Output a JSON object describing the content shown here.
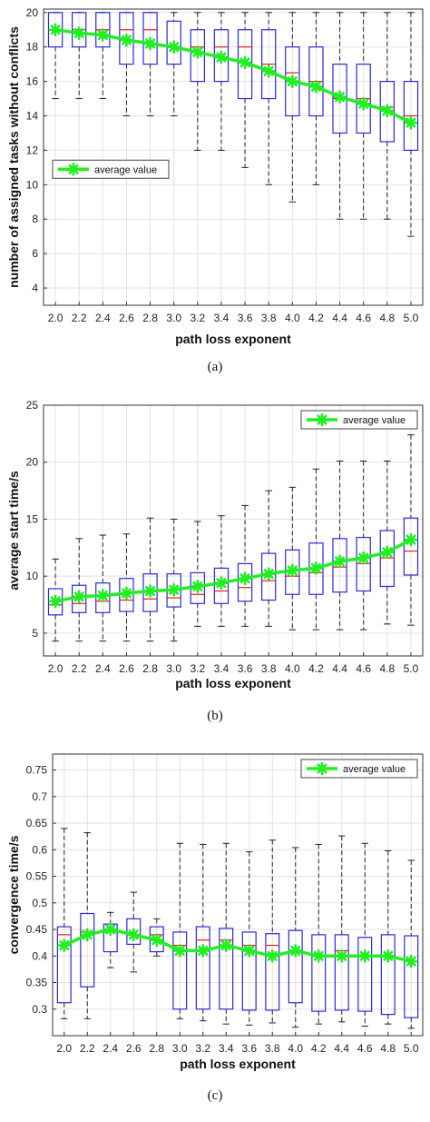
{
  "chart_data": [
    {
      "type": "box",
      "panel_label": "(a)",
      "xlabel": "path loss exponent",
      "ylabel": "number of assigned tasks without conflicts",
      "categories": [
        "2.0",
        "2.2",
        "2.4",
        "2.6",
        "2.8",
        "3.0",
        "3.2",
        "3.4",
        "3.6",
        "3.8",
        "4.0",
        "4.2",
        "4.4",
        "4.6",
        "4.8",
        "5.0"
      ],
      "ylim": [
        3,
        20.2
      ],
      "yticks": [
        4,
        6,
        8,
        10,
        12,
        14,
        16,
        18,
        20
      ],
      "grid": true,
      "legend": {
        "label": "average value",
        "placement": "middle-left"
      },
      "average_series": {
        "name": "average value",
        "color": "#22ee22",
        "values": [
          19.0,
          18.8,
          18.7,
          18.4,
          18.2,
          18.0,
          17.7,
          17.4,
          17.1,
          16.6,
          16.0,
          15.7,
          15.1,
          14.7,
          14.3,
          13.6
        ]
      },
      "boxes": [
        {
          "min": 15,
          "q1": 18.0,
          "median": 19.0,
          "q3": 20,
          "max": 20
        },
        {
          "min": 15,
          "q1": 18.0,
          "median": 19.0,
          "q3": 20,
          "max": 20
        },
        {
          "min": 15,
          "q1": 18.0,
          "median": 19.0,
          "q3": 20,
          "max": 20
        },
        {
          "min": 14,
          "q1": 17.0,
          "median": 19.0,
          "q3": 20,
          "max": 20
        },
        {
          "min": 14,
          "q1": 17.0,
          "median": 19.0,
          "q3": 20,
          "max": 20
        },
        {
          "min": 14,
          "q1": 17.0,
          "median": 18.0,
          "q3": 19.5,
          "max": 20
        },
        {
          "min": 12,
          "q1": 16.0,
          "median": 18.0,
          "q3": 19.0,
          "max": 20
        },
        {
          "min": 12,
          "q1": 16.0,
          "median": 18.0,
          "q3": 19.0,
          "max": 20
        },
        {
          "min": 11,
          "q1": 15.0,
          "median": 18.0,
          "q3": 19.0,
          "max": 20
        },
        {
          "min": 10,
          "q1": 15.0,
          "median": 17.0,
          "q3": 19.0,
          "max": 20
        },
        {
          "min": 9,
          "q1": 14.0,
          "median": 16.5,
          "q3": 18.0,
          "max": 20
        },
        {
          "min": 10,
          "q1": 14.0,
          "median": 16.0,
          "q3": 18.0,
          "max": 20
        },
        {
          "min": 8,
          "q1": 13.0,
          "median": 15.0,
          "q3": 17.0,
          "max": 20
        },
        {
          "min": 8,
          "q1": 13.0,
          "median": 15.0,
          "q3": 17.0,
          "max": 20
        },
        {
          "min": 8,
          "q1": 12.5,
          "median": 14.5,
          "q3": 16.0,
          "max": 20
        },
        {
          "min": 7,
          "q1": 12.0,
          "median": 14.0,
          "q3": 16.0,
          "max": 20
        }
      ]
    },
    {
      "type": "box",
      "panel_label": "(b)",
      "xlabel": "path loss exponent",
      "ylabel": "average start time/s",
      "categories": [
        "2.0",
        "2.2",
        "2.4",
        "2.6",
        "2.8",
        "3.0",
        "3.2",
        "3.4",
        "3.6",
        "3.8",
        "4.0",
        "4.2",
        "4.4",
        "4.6",
        "4.8",
        "5.0"
      ],
      "ylim": [
        3,
        25
      ],
      "yticks": [
        5,
        10,
        15,
        20,
        25
      ],
      "grid": true,
      "legend": {
        "label": "average value",
        "placement": "top-right"
      },
      "average_series": {
        "name": "average value",
        "color": "#22ee22",
        "values": [
          7.8,
          8.2,
          8.3,
          8.5,
          8.7,
          8.8,
          9.1,
          9.4,
          9.8,
          10.2,
          10.5,
          10.7,
          11.3,
          11.6,
          12.1,
          13.2
        ]
      },
      "boxes": [
        {
          "min": 4.3,
          "q1": 6.6,
          "median": 7.5,
          "q3": 8.9,
          "max": 11.5
        },
        {
          "min": 4.3,
          "q1": 6.8,
          "median": 7.6,
          "q3": 9.2,
          "max": 13.3
        },
        {
          "min": 4.3,
          "q1": 6.8,
          "median": 7.8,
          "q3": 9.4,
          "max": 13.6
        },
        {
          "min": 4.3,
          "q1": 6.9,
          "median": 7.9,
          "q3": 9.8,
          "max": 13.7
        },
        {
          "min": 4.3,
          "q1": 6.9,
          "median": 8.0,
          "q3": 10.2,
          "max": 15.1
        },
        {
          "min": 4.3,
          "q1": 7.3,
          "median": 8.1,
          "q3": 10.2,
          "max": 15.0
        },
        {
          "min": 5.6,
          "q1": 7.6,
          "median": 8.4,
          "q3": 10.3,
          "max": 14.8
        },
        {
          "min": 5.6,
          "q1": 7.6,
          "median": 8.7,
          "q3": 10.7,
          "max": 15.3
        },
        {
          "min": 5.6,
          "q1": 7.8,
          "median": 9.0,
          "q3": 11.1,
          "max": 16.2
        },
        {
          "min": 5.6,
          "q1": 7.9,
          "median": 9.6,
          "q3": 12.0,
          "max": 17.5
        },
        {
          "min": 5.3,
          "q1": 8.4,
          "median": 10.0,
          "q3": 12.3,
          "max": 17.8
        },
        {
          "min": 5.3,
          "q1": 8.4,
          "median": 10.3,
          "q3": 12.9,
          "max": 19.4
        },
        {
          "min": 5.3,
          "q1": 8.6,
          "median": 10.8,
          "q3": 13.3,
          "max": 20.1
        },
        {
          "min": 5.3,
          "q1": 8.7,
          "median": 11.1,
          "q3": 13.4,
          "max": 20.1
        },
        {
          "min": 5.8,
          "q1": 9.1,
          "median": 11.6,
          "q3": 14.0,
          "max": 20.1
        },
        {
          "min": 5.7,
          "q1": 10.1,
          "median": 12.2,
          "q3": 15.1,
          "max": 22.4
        }
      ]
    },
    {
      "type": "box",
      "panel_label": "(c)",
      "xlabel": "path loss exponent",
      "ylabel": "convergence time/s",
      "categories": [
        "2.0",
        "2.2",
        "2.4",
        "2.6",
        "2.8",
        "3.0",
        "3.2",
        "3.4",
        "3.6",
        "3.8",
        "4.0",
        "4.2",
        "4.4",
        "4.6",
        "4.8",
        "5.0"
      ],
      "ylim": [
        0.25,
        0.78
      ],
      "yticks": [
        0.3,
        0.35,
        0.4,
        0.45,
        0.5,
        0.55,
        0.6,
        0.65,
        0.7,
        0.75
      ],
      "ytick_labels": [
        "0.3",
        "0.35",
        "0.4",
        "0.45",
        "0.5",
        "0.55",
        "0.6",
        "0.65",
        "0.7",
        "0.75"
      ],
      "grid": true,
      "legend": {
        "label": "average value",
        "placement": "top-right"
      },
      "average_series": {
        "name": "average value",
        "color": "#22ee22",
        "values": [
          0.42,
          0.44,
          0.45,
          0.44,
          0.43,
          0.41,
          0.41,
          0.42,
          0.41,
          0.4,
          0.41,
          0.4,
          0.4,
          0.4,
          0.4,
          0.39
        ]
      },
      "boxes": [
        {
          "min": 0.282,
          "q1": 0.312,
          "median": 0.44,
          "q3": 0.455,
          "max": 0.64
        },
        {
          "min": 0.282,
          "q1": 0.342,
          "median": 0.445,
          "q3": 0.48,
          "max": 0.632
        },
        {
          "min": 0.378,
          "q1": 0.408,
          "median": 0.445,
          "q3": 0.46,
          "max": 0.482
        },
        {
          "min": 0.37,
          "q1": 0.422,
          "median": 0.44,
          "q3": 0.47,
          "max": 0.52
        },
        {
          "min": 0.4,
          "q1": 0.408,
          "median": 0.44,
          "q3": 0.455,
          "max": 0.47
        },
        {
          "min": 0.282,
          "q1": 0.3,
          "median": 0.42,
          "q3": 0.445,
          "max": 0.612
        },
        {
          "min": 0.278,
          "q1": 0.3,
          "median": 0.43,
          "q3": 0.455,
          "max": 0.61
        },
        {
          "min": 0.272,
          "q1": 0.3,
          "median": 0.43,
          "q3": 0.452,
          "max": 0.612
        },
        {
          "min": 0.27,
          "q1": 0.298,
          "median": 0.42,
          "q3": 0.445,
          "max": 0.596
        },
        {
          "min": 0.274,
          "q1": 0.298,
          "median": 0.42,
          "q3": 0.442,
          "max": 0.618
        },
        {
          "min": 0.266,
          "q1": 0.312,
          "median": 0.41,
          "q3": 0.448,
          "max": 0.604
        },
        {
          "min": 0.272,
          "q1": 0.296,
          "median": 0.4,
          "q3": 0.44,
          "max": 0.61
        },
        {
          "min": 0.276,
          "q1": 0.298,
          "median": 0.41,
          "q3": 0.44,
          "max": 0.626
        },
        {
          "min": 0.268,
          "q1": 0.296,
          "median": 0.4,
          "q3": 0.435,
          "max": 0.612
        },
        {
          "min": 0.272,
          "q1": 0.29,
          "median": 0.4,
          "q3": 0.44,
          "max": 0.598
        },
        {
          "min": 0.264,
          "q1": 0.284,
          "median": 0.39,
          "q3": 0.438,
          "max": 0.58
        }
      ]
    }
  ]
}
